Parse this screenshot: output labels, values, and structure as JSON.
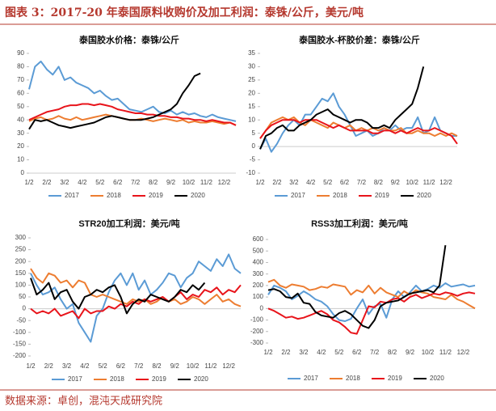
{
  "title": "图表 3：2017-20 年泰国原料收购价及加工利润：泰铢/公斤，美元/吨",
  "source": "数据来源：卓创，混沌天成研究院",
  "chart_data": [
    {
      "type": "line",
      "title": "泰国胶水价格：泰铢/公斤",
      "legend": "bottom",
      "categories": [
        "1/2",
        null,
        null,
        "2/2",
        null,
        null,
        "3/2",
        null,
        null,
        "4/2",
        null,
        null,
        "5/2",
        null,
        null,
        "6/2",
        null,
        null,
        "7/2",
        null,
        null,
        "8/2",
        null,
        null,
        "9/2",
        null,
        null,
        "10/2",
        null,
        null,
        "11/2",
        null,
        null,
        "12/2",
        null,
        null
      ],
      "ylim": [
        0,
        90
      ],
      "yticks": [
        0,
        10,
        20,
        30,
        40,
        50,
        60,
        70,
        80,
        90
      ],
      "series": [
        {
          "name": "2017",
          "color": "#5b9bd5",
          "values": [
            63,
            80,
            84,
            78,
            74,
            80,
            70,
            72,
            68,
            66,
            64,
            60,
            62,
            58,
            55,
            56,
            52,
            48,
            47,
            46,
            48,
            50,
            46,
            45,
            47,
            44,
            46,
            44,
            45,
            43,
            42,
            44,
            42,
            41,
            40,
            39
          ]
        },
        {
          "name": "2018",
          "color": "#ed7d31",
          "values": [
            39,
            41,
            42,
            40,
            41,
            43,
            41,
            40,
            42,
            40,
            41,
            42,
            43,
            44,
            43,
            42,
            41,
            40,
            40,
            41,
            40,
            39,
            40,
            41,
            40,
            39,
            40,
            38,
            39,
            38,
            38,
            39,
            38,
            37,
            38,
            36
          ]
        },
        {
          "name": "2019",
          "color": "#e8141b",
          "values": [
            40,
            42,
            44,
            46,
            47,
            48,
            50,
            51,
            51,
            52,
            52,
            51,
            52,
            51,
            50,
            48,
            47,
            46,
            45,
            45,
            44,
            44,
            43,
            43,
            42,
            42,
            41,
            41,
            40,
            40,
            39,
            40,
            39,
            38,
            38,
            36
          ]
        },
        {
          "name": "2020",
          "color": "#000000",
          "values": [
            33,
            40,
            39,
            40,
            38,
            36,
            35,
            34,
            35,
            36,
            37,
            38,
            40,
            42,
            43,
            42,
            41,
            40,
            40,
            40,
            41,
            42,
            44,
            46,
            48,
            52,
            60,
            66,
            73,
            75,
            null,
            null,
            null,
            null,
            null,
            null
          ]
        }
      ]
    },
    {
      "type": "line",
      "title": "泰国胶水-杯胶价差：泰铢/公斤",
      "legend": "bottom",
      "categories": [
        "1/2",
        null,
        null,
        "2/2",
        null,
        null,
        "3/2",
        null,
        null,
        "4/2",
        null,
        null,
        "5/2",
        null,
        null,
        "6/2",
        null,
        null,
        "7/2",
        null,
        null,
        "8/2",
        null,
        null,
        "9/2",
        null,
        null,
        "10/2",
        null,
        null,
        "11/2",
        null,
        null,
        "12/2",
        null,
        null
      ],
      "ylim": [
        -10,
        35
      ],
      "yticks": [
        -10,
        -5,
        0,
        5,
        10,
        15,
        20,
        25,
        30,
        35
      ],
      "series": [
        {
          "name": "2017",
          "color": "#5b9bd5",
          "values": [
            -1,
            3,
            -2,
            1,
            5,
            8,
            10,
            8,
            12,
            12,
            15,
            18,
            17,
            20,
            15,
            12,
            8,
            4,
            5,
            6,
            4,
            5,
            7,
            6,
            8,
            6,
            7,
            7,
            11,
            5,
            6,
            11,
            6,
            5,
            4,
            4
          ]
        },
        {
          "name": "2018",
          "color": "#ed7d31",
          "values": [
            3,
            6,
            9,
            10,
            11,
            10,
            11,
            9,
            8,
            10,
            9,
            8,
            7,
            9,
            8,
            7,
            8,
            6,
            7,
            6,
            7,
            6,
            7,
            6,
            6,
            7,
            5,
            5,
            6,
            5,
            5,
            4,
            5,
            4,
            5,
            4
          ]
        },
        {
          "name": "2019",
          "color": "#e8141b",
          "values": [
            3,
            6,
            8,
            9,
            10,
            10,
            10,
            9,
            10,
            10,
            10,
            9,
            8,
            7,
            8,
            7,
            6,
            6,
            6,
            6,
            5,
            5,
            6,
            6,
            5,
            6,
            5,
            6,
            7,
            6,
            6,
            7,
            6,
            5,
            4,
            1
          ]
        },
        {
          "name": "2020",
          "color": "#000000",
          "values": [
            -1,
            4,
            5,
            7,
            8,
            6,
            6,
            8,
            9,
            10,
            12,
            13,
            14,
            12,
            11,
            10,
            9,
            10,
            10,
            9,
            7,
            7,
            8,
            7,
            10,
            12,
            14,
            16,
            22,
            30,
            null,
            null,
            null,
            null,
            null,
            null
          ]
        }
      ]
    },
    {
      "type": "line",
      "title": "STR20加工利润：美元/吨",
      "legend": "bottom",
      "categories": [
        "1/2",
        null,
        null,
        "2/2",
        null,
        null,
        "3/2",
        null,
        null,
        "4/2",
        null,
        null,
        "5/2",
        null,
        null,
        "6/2",
        null,
        null,
        "7/2",
        null,
        null,
        "8/2",
        null,
        null,
        "9/2",
        null,
        null,
        "10/2",
        null,
        null,
        "11/2",
        null,
        null,
        "12/2",
        null,
        null
      ],
      "ylim": [
        -200,
        300
      ],
      "yticks": [
        -200,
        -150,
        -100,
        -50,
        0,
        50,
        100,
        150,
        200,
        250,
        300
      ],
      "series": [
        {
          "name": "2017",
          "color": "#5b9bd5",
          "values": [
            150,
            100,
            60,
            70,
            90,
            40,
            0,
            20,
            -60,
            -100,
            -140,
            -30,
            0,
            70,
            120,
            150,
            100,
            150,
            80,
            120,
            60,
            80,
            110,
            150,
            140,
            90,
            130,
            150,
            200,
            180,
            160,
            210,
            180,
            230,
            170,
            150
          ]
        },
        {
          "name": "2018",
          "color": "#ed7d31",
          "values": [
            170,
            130,
            110,
            150,
            140,
            110,
            120,
            90,
            120,
            110,
            60,
            50,
            60,
            50,
            40,
            30,
            20,
            40,
            30,
            40,
            20,
            30,
            50,
            30,
            40,
            20,
            30,
            50,
            40,
            20,
            40,
            60,
            30,
            40,
            20,
            10
          ]
        },
        {
          "name": "2019",
          "color": "#e8141b",
          "values": [
            0,
            -20,
            -10,
            -20,
            0,
            -30,
            -20,
            -10,
            -40,
            0,
            -20,
            -10,
            -10,
            10,
            0,
            20,
            10,
            30,
            20,
            40,
            30,
            40,
            50,
            30,
            50,
            70,
            40,
            60,
            50,
            80,
            70,
            90,
            60,
            80,
            70,
            100
          ]
        },
        {
          "name": "2020",
          "color": "#000000",
          "values": [
            130,
            60,
            80,
            110,
            40,
            70,
            80,
            30,
            0,
            50,
            60,
            80,
            70,
            90,
            100,
            50,
            -20,
            20,
            40,
            30,
            60,
            50,
            40,
            30,
            50,
            80,
            70,
            100,
            80,
            110,
            null,
            null,
            null,
            null,
            null,
            null
          ]
        }
      ]
    },
    {
      "type": "line",
      "title": "RSS3加工利润：美元/吨",
      "legend": "bottom",
      "categories": [
        "1/2",
        null,
        null,
        "2/2",
        null,
        null,
        "3/2",
        null,
        null,
        "4/2",
        null,
        null,
        "5/2",
        null,
        null,
        "6/2",
        null,
        null,
        "7/2",
        null,
        null,
        "8/2",
        null,
        null,
        "9/2",
        null,
        null,
        "10/2",
        null,
        null,
        "11/2",
        null,
        null,
        "12/2",
        null,
        null
      ],
      "ylim": [
        -300,
        600
      ],
      "yticks": [
        -300,
        -200,
        -100,
        0,
        100,
        200,
        300,
        400,
        500,
        600
      ],
      "series": [
        {
          "name": "2017",
          "color": "#5b9bd5",
          "values": [
            120,
            200,
            180,
            150,
            80,
            110,
            150,
            120,
            80,
            60,
            20,
            -50,
            -100,
            -110,
            -90,
            0,
            80,
            -50,
            20,
            40,
            -80,
            80,
            150,
            100,
            140,
            200,
            150,
            170,
            200,
            180,
            220,
            190,
            200,
            210,
            190,
            200
          ]
        },
        {
          "name": "2018",
          "color": "#ed7d31",
          "values": [
            230,
            250,
            200,
            180,
            210,
            200,
            190,
            160,
            170,
            190,
            180,
            210,
            200,
            190,
            120,
            160,
            140,
            200,
            130,
            180,
            140,
            120,
            100,
            150,
            120,
            160,
            140,
            130,
            100,
            90,
            80,
            120,
            80,
            60,
            30,
            0
          ]
        },
        {
          "name": "2019",
          "color": "#e8141b",
          "values": [
            0,
            -20,
            -50,
            -80,
            -70,
            -90,
            -80,
            -60,
            -40,
            -20,
            -50,
            -100,
            -120,
            -160,
            -210,
            -220,
            -100,
            20,
            10,
            60,
            50,
            80,
            90,
            60,
            100,
            120,
            90,
            110,
            130,
            120,
            140,
            130,
            110,
            130,
            140,
            130
          ]
        },
        {
          "name": "2020",
          "color": "#000000",
          "values": [
            160,
            170,
            150,
            100,
            90,
            130,
            50,
            40,
            -30,
            -60,
            -70,
            -80,
            -40,
            -20,
            -50,
            -100,
            -150,
            -170,
            -100,
            20,
            50,
            60,
            70,
            100,
            130,
            140,
            150,
            160,
            140,
            200,
            550,
            null,
            null,
            null,
            null,
            null
          ]
        }
      ]
    }
  ]
}
